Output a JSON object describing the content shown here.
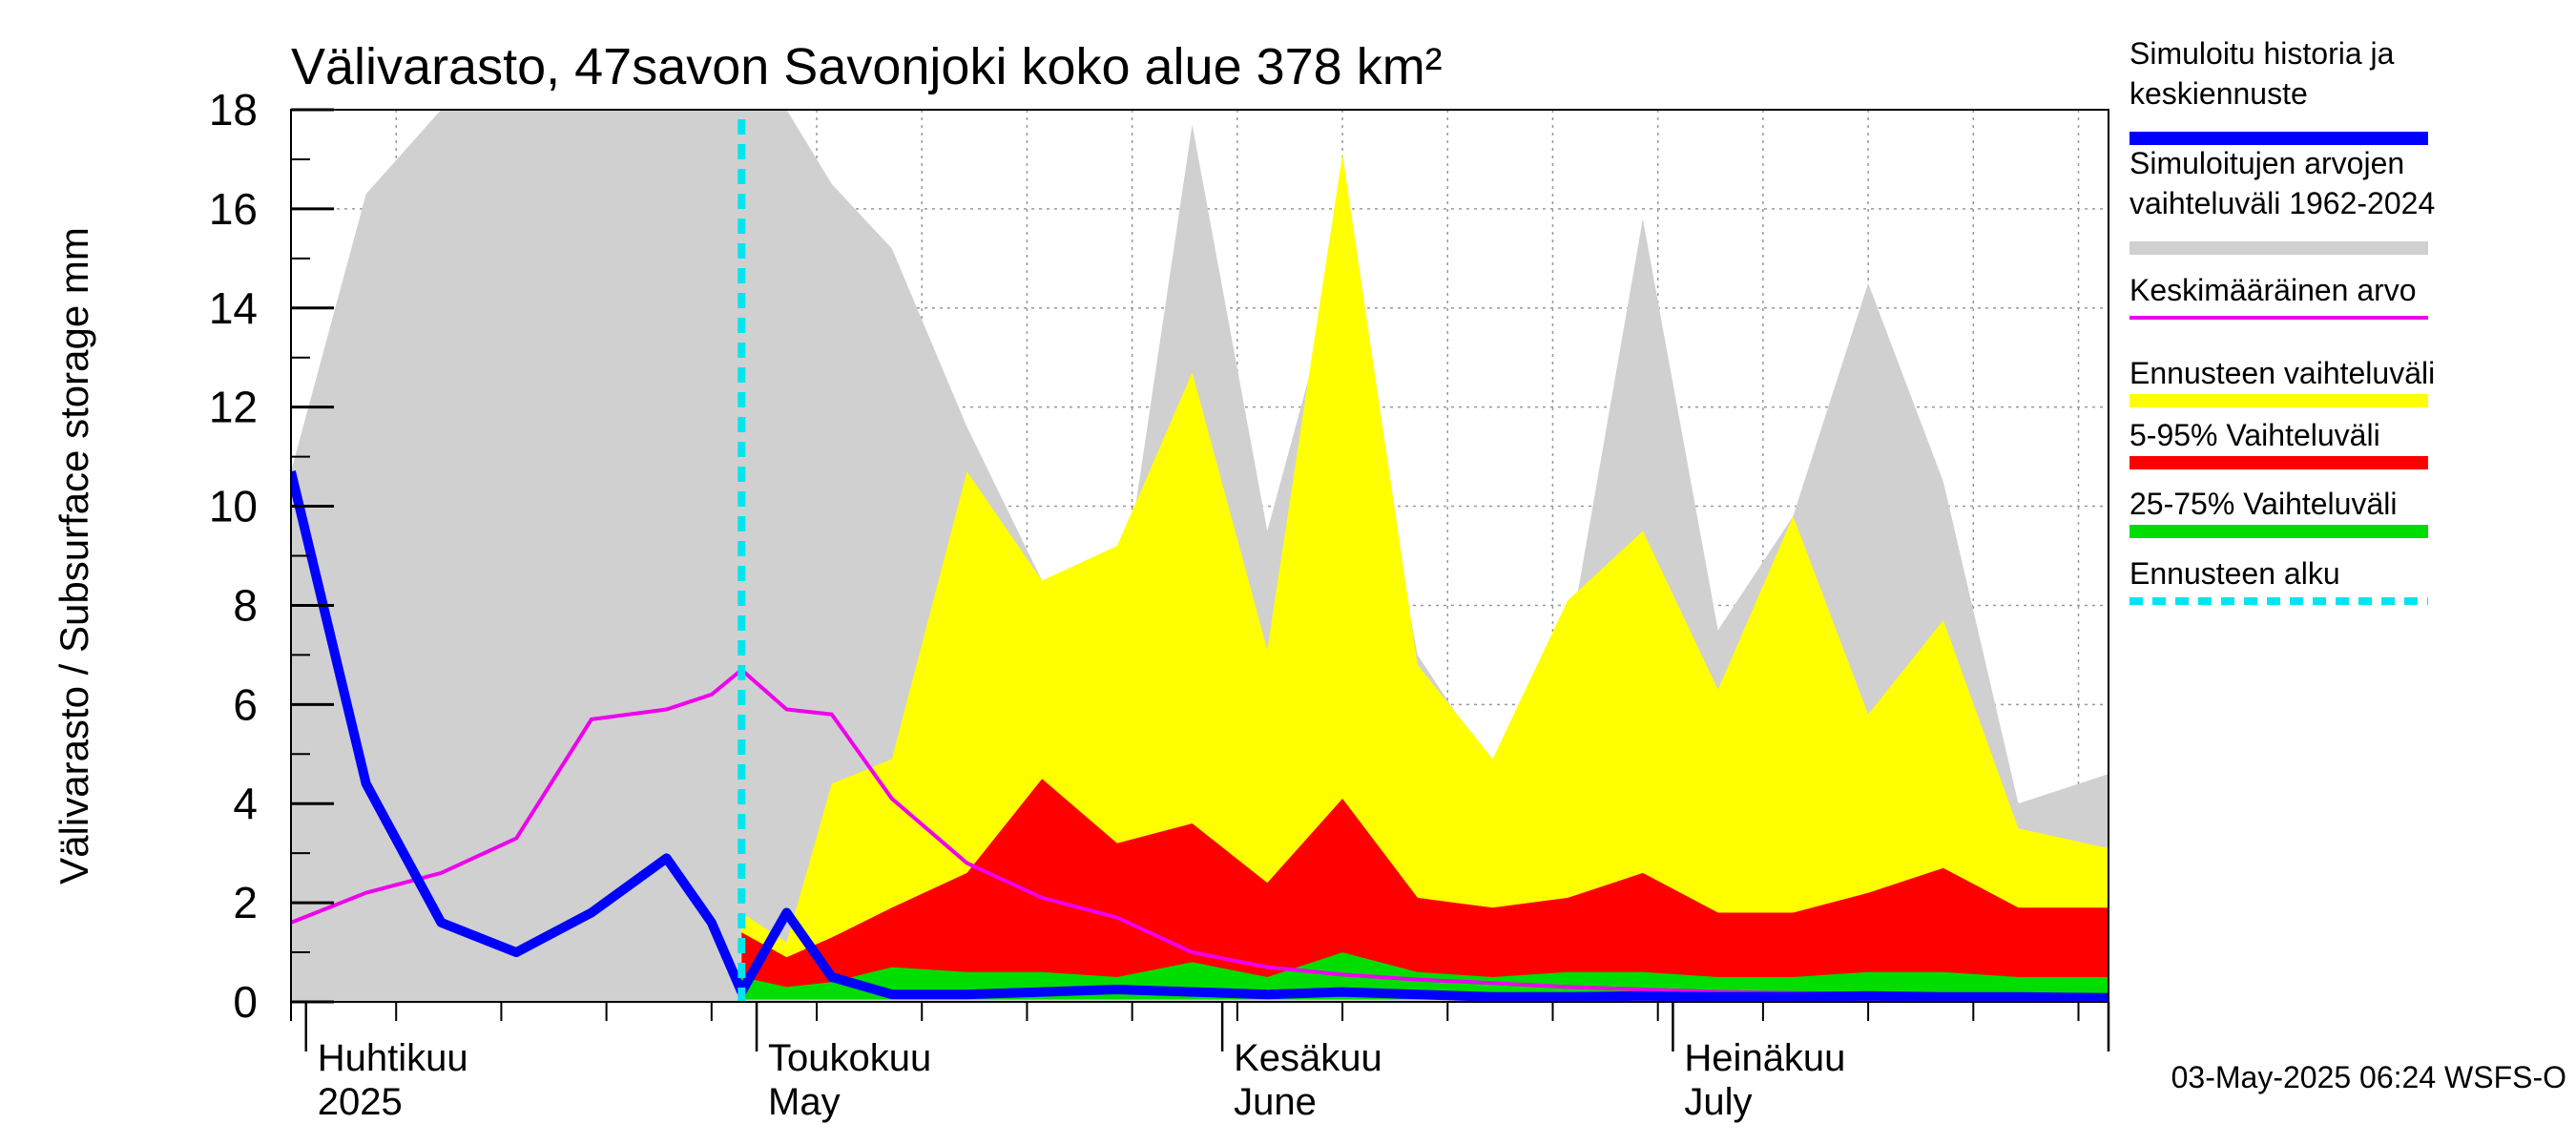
{
  "chart_data": {
    "type": "area",
    "title": "Välivarasto, 47savon Savonjoki koko alue 378 km²",
    "ylabel": "Välivarasto / Subsurface storage  mm",
    "ylim": [
      0,
      18
    ],
    "yticks": [
      "0",
      "2",
      "4",
      "6",
      "8",
      "10",
      "12",
      "14",
      "16",
      "18"
    ],
    "xlim": [
      "2025-03-31",
      "2025-07-30"
    ],
    "grid": true,
    "month_labels": [
      {
        "date": "2025-04-01",
        "fi": "Huhtikuu",
        "en": "2025"
      },
      {
        "date": "2025-05-01",
        "fi": "Toukokuu",
        "en": "May"
      },
      {
        "date": "2025-06-01",
        "fi": "Kesäkuu",
        "en": "June"
      },
      {
        "date": "2025-07-01",
        "fi": "Heinäkuu",
        "en": "July"
      }
    ],
    "forecast_start": "2025-04-30",
    "x": [
      "2025-03-31",
      "2025-04-05",
      "2025-04-10",
      "2025-04-15",
      "2025-04-20",
      "2025-04-25",
      "2025-04-28",
      "2025-04-30",
      "2025-05-03",
      "2025-05-06",
      "2025-05-10",
      "2025-05-15",
      "2025-05-20",
      "2025-05-25",
      "2025-05-30",
      "2025-06-04",
      "2025-06-09",
      "2025-06-14",
      "2025-06-19",
      "2025-06-24",
      "2025-06-29",
      "2025-07-04",
      "2025-07-09",
      "2025-07-14",
      "2025-07-19",
      "2025-07-24",
      "2025-07-30"
    ],
    "series": [
      {
        "name": "Simuloitujen arvojen vaihteluväli 1962-2024",
        "color": "#d0d0d0",
        "low": [
          0,
          0,
          0,
          0,
          0,
          0,
          0,
          0,
          0,
          0,
          0,
          0,
          0,
          0,
          0,
          0,
          0,
          0,
          0,
          0,
          0,
          0,
          0,
          0,
          0,
          0,
          0
        ],
        "high": [
          10.7,
          16.3,
          18,
          18,
          18,
          18,
          18,
          18,
          18,
          16.5,
          15.2,
          11.6,
          8.5,
          7.5,
          17.7,
          9.5,
          15.1,
          7,
          4.7,
          7.1,
          15.8,
          7.5,
          9.8,
          14.5,
          10.5,
          4,
          4.6
        ]
      },
      {
        "name": "Ennusteen vaihteluväli",
        "color": "#ffff00",
        "low": [
          null,
          null,
          null,
          null,
          null,
          null,
          null,
          0.1,
          0.1,
          0.1,
          0.1,
          0.1,
          0.1,
          0.1,
          0.1,
          0.1,
          0.1,
          0.1,
          0.1,
          0.1,
          0.1,
          0.1,
          0.1,
          0.1,
          0.1,
          0.1,
          0.1
        ],
        "high": [
          null,
          null,
          null,
          null,
          null,
          null,
          null,
          1.8,
          1.2,
          4.4,
          4.9,
          10.7,
          8.5,
          9.2,
          12.7,
          7.1,
          17.1,
          6.8,
          4.9,
          8.1,
          9.5,
          6.3,
          9.8,
          5.8,
          7.7,
          3.5,
          3.1
        ]
      },
      {
        "name": "5-95% Vaihteluväli",
        "color": "#ff0000",
        "low": [
          null,
          null,
          null,
          null,
          null,
          null,
          null,
          0.05,
          0.05,
          0.05,
          0.05,
          0.05,
          0.05,
          0.05,
          0.05,
          0.05,
          0.05,
          0.05,
          0.05,
          0.05,
          0.05,
          0.05,
          0.05,
          0.05,
          0.05,
          0.05,
          0.05
        ],
        "high": [
          null,
          null,
          null,
          null,
          null,
          null,
          null,
          1.4,
          0.9,
          1.3,
          1.9,
          2.6,
          4.5,
          3.2,
          3.6,
          2.4,
          4.1,
          2.1,
          1.9,
          2.1,
          2.6,
          1.8,
          1.8,
          2.2,
          2.7,
          1.9,
          1.9
        ]
      },
      {
        "name": "25-75% Vaihteluväli",
        "color": "#00dd00",
        "low": [
          null,
          null,
          null,
          null,
          null,
          null,
          null,
          0.05,
          0.05,
          0.05,
          0.05,
          0.05,
          0.05,
          0.05,
          0.05,
          0.05,
          0.05,
          0.05,
          0.05,
          0.05,
          0.05,
          0.05,
          0.05,
          0.05,
          0.05,
          0.05,
          0.05
        ],
        "high": [
          null,
          null,
          null,
          null,
          null,
          null,
          null,
          0.5,
          0.3,
          0.4,
          0.7,
          0.6,
          0.6,
          0.5,
          0.8,
          0.5,
          1.0,
          0.6,
          0.5,
          0.6,
          0.6,
          0.5,
          0.5,
          0.6,
          0.6,
          0.5,
          0.5
        ]
      },
      {
        "name": "Keskimääräinen arvo",
        "color": "#ee00ee",
        "values": [
          1.6,
          2.2,
          2.6,
          3.3,
          5.7,
          5.9,
          6.2,
          6.7,
          5.9,
          5.8,
          4.1,
          2.8,
          2.1,
          1.7,
          1.0,
          0.7,
          0.55,
          0.45,
          0.38,
          0.3,
          0.25,
          0.2,
          0.18,
          0.16,
          0.14,
          0.12,
          0.12
        ]
      },
      {
        "name": "Simuloitu historia ja keskiennuste",
        "color": "#0000ff",
        "values": [
          10.7,
          4.4,
          1.6,
          1.0,
          1.8,
          2.9,
          1.6,
          0.2,
          1.8,
          0.5,
          0.15,
          0.15,
          0.2,
          0.25,
          0.2,
          0.15,
          0.2,
          0.15,
          0.1,
          0.1,
          0.12,
          0.1,
          0.1,
          0.12,
          0.1,
          0.1,
          0.08
        ]
      }
    ],
    "legend": {
      "placement": "right",
      "entries": [
        {
          "label": "Simuloitu historia ja keskiennuste",
          "color": "#0000ff",
          "style": "solid"
        },
        {
          "label": "Simuloitujen arvojen vaihteluväli 1962-2024",
          "color": "#d0d0d0",
          "style": "solid"
        },
        {
          "label": "Keskimääräinen arvo",
          "color": "#ee00ee",
          "style": "thin"
        },
        {
          "label": "Ennusteen vaihteluväli",
          "color": "#ffff00",
          "style": "solid"
        },
        {
          "label": "5-95% Vaihteluväli",
          "color": "#ff0000",
          "style": "solid"
        },
        {
          "label": "25-75% Vaihteluväli",
          "color": "#00dd00",
          "style": "solid"
        },
        {
          "label": "Ennusteen alku",
          "color": "#00e5ee",
          "style": "dashed"
        }
      ]
    },
    "timestamp": "03-May-2025 06:24 WSFS-O"
  }
}
